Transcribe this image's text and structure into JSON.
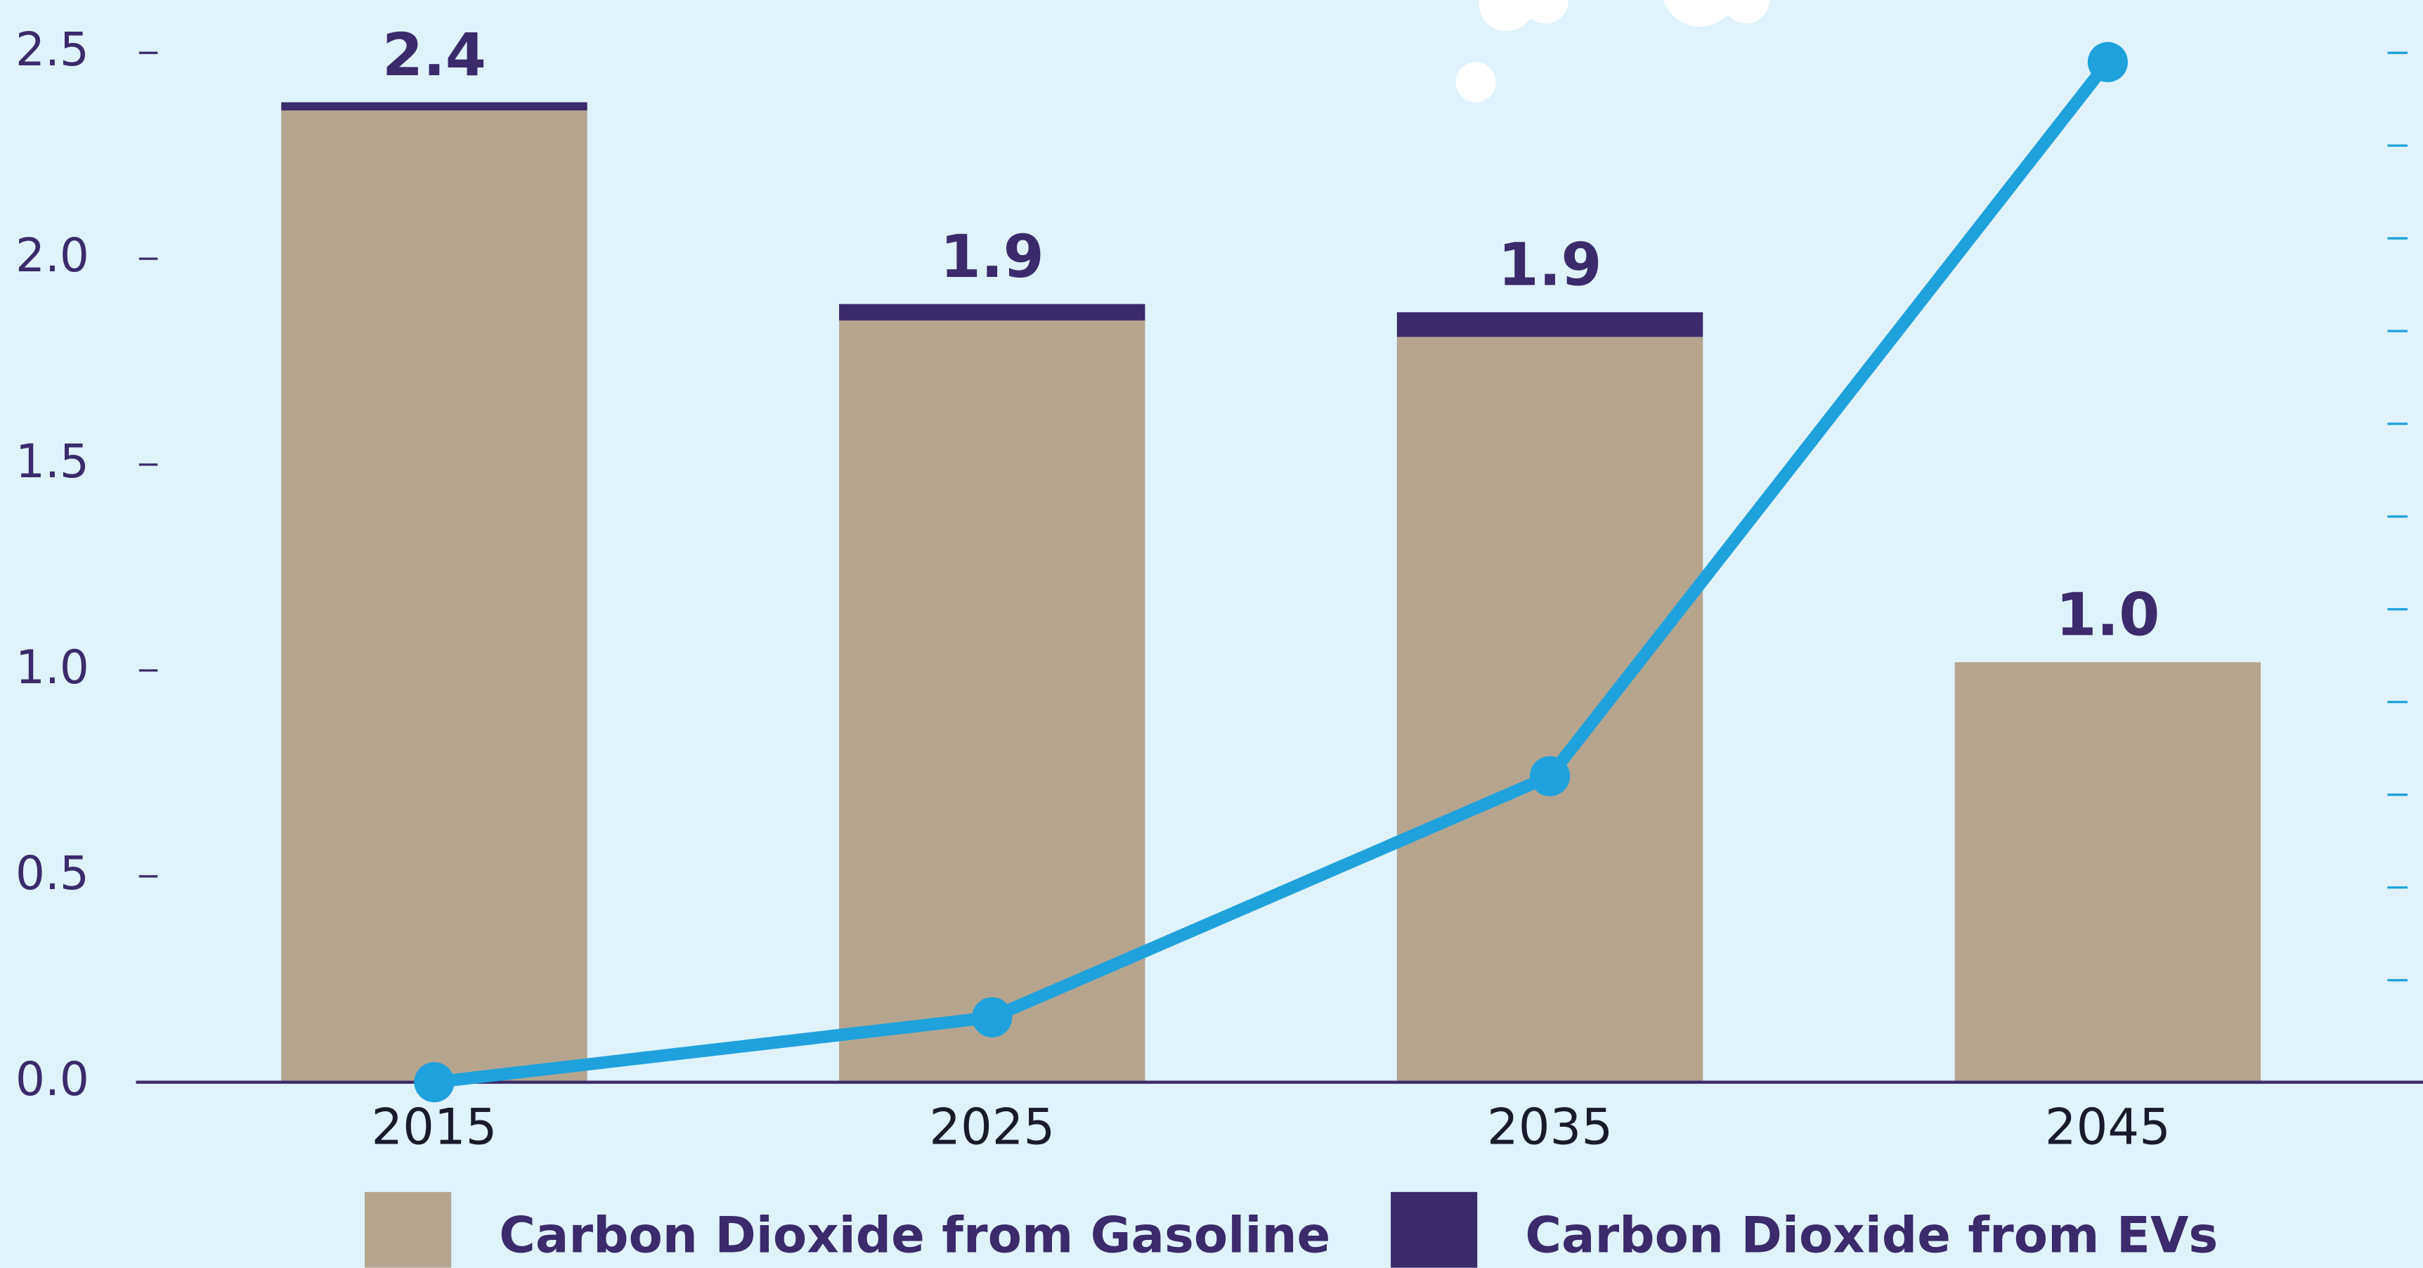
{
  "chart_data": {
    "type": "bar-line",
    "categories": [
      "2015",
      "2025",
      "2035",
      "2045"
    ],
    "series": [
      {
        "name": "Carbon Dioxide from Gasoline",
        "color": "#b5a58f",
        "values": [
          2.36,
          1.85,
          1.81,
          1.02
        ]
      },
      {
        "name": "Carbon Dioxide from EVs",
        "color": "#3b2a6c",
        "values": [
          0.02,
          0.04,
          0.06,
          0
        ]
      },
      {
        "color": "#1fa2dc",
        "axis": "y2",
        "values": [
          0,
          7,
          33,
          110
        ]
      }
    ],
    "totals": {
      "values": [
        2.38,
        1.89,
        1.87,
        1.02
      ],
      "value_labels": [
        "2.4",
        "1.9",
        "1.9",
        "1.0"
      ]
    },
    "ylim": [
      0,
      2.5
    ],
    "yticks": [
      {
        "value": 0,
        "label": "0.0"
      },
      0.5,
      {
        "value": 1,
        "label": "1.0"
      },
      1.5,
      {
        "value": 2,
        "label": "2.0"
      },
      2.5
    ],
    "y2lim": [
      0,
      111
    ],
    "y2ticks": [
      11,
      21,
      31,
      41,
      51,
      61,
      71,
      81,
      91,
      101,
      111
    ]
  }
}
